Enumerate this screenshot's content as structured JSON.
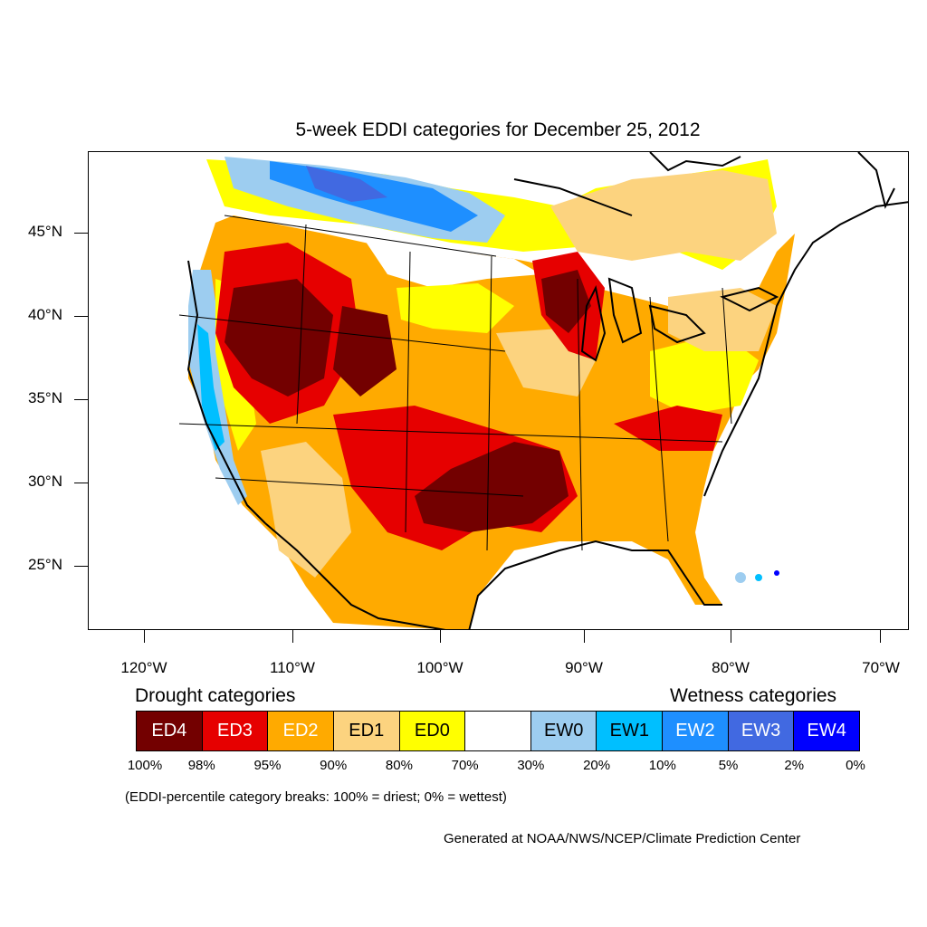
{
  "title": "5-week EDDI categories for December 25, 2012",
  "lat_labels": [
    "45°N",
    "40°N",
    "35°N",
    "30°N",
    "25°N"
  ],
  "lon_labels": [
    "120°W",
    "110°W",
    "100°W",
    "90°W",
    "80°W",
    "70°W"
  ],
  "legend": {
    "drought_heading": "Drought categories",
    "wetness_heading": "Wetness categories",
    "categories": [
      {
        "label": "ED4",
        "color": "#730000",
        "text_color": "#ffffff"
      },
      {
        "label": "ED3",
        "color": "#e60000",
        "text_color": "#ffffff"
      },
      {
        "label": "ED2",
        "color": "#ffaa00",
        "text_color": "#ffffff"
      },
      {
        "label": "ED1",
        "color": "#fcd37f",
        "text_color": "#000000"
      },
      {
        "label": "ED0",
        "color": "#ffff00",
        "text_color": "#000000"
      },
      {
        "label": "",
        "color": "#ffffff",
        "text_color": "#000000"
      },
      {
        "label": "EW0",
        "color": "#9dcdf0",
        "text_color": "#000000"
      },
      {
        "label": "EW1",
        "color": "#00bfff",
        "text_color": "#000000"
      },
      {
        "label": "EW2",
        "color": "#1e8fff",
        "text_color": "#ffffff"
      },
      {
        "label": "EW3",
        "color": "#4169e1",
        "text_color": "#ffffff"
      },
      {
        "label": "EW4",
        "color": "#0000ff",
        "text_color": "#ffffff"
      }
    ],
    "percent_breaks": [
      "100%",
      "98%",
      "95%",
      "90%",
      "80%",
      "70%",
      "30%",
      "20%",
      "10%",
      "5%",
      "2%",
      "0%"
    ]
  },
  "note": "(EDDI-percentile category breaks: 100% = driest; 0% = wettest)",
  "credit": "Generated at NOAA/NWS/NCEP/Climate Prediction Center"
}
